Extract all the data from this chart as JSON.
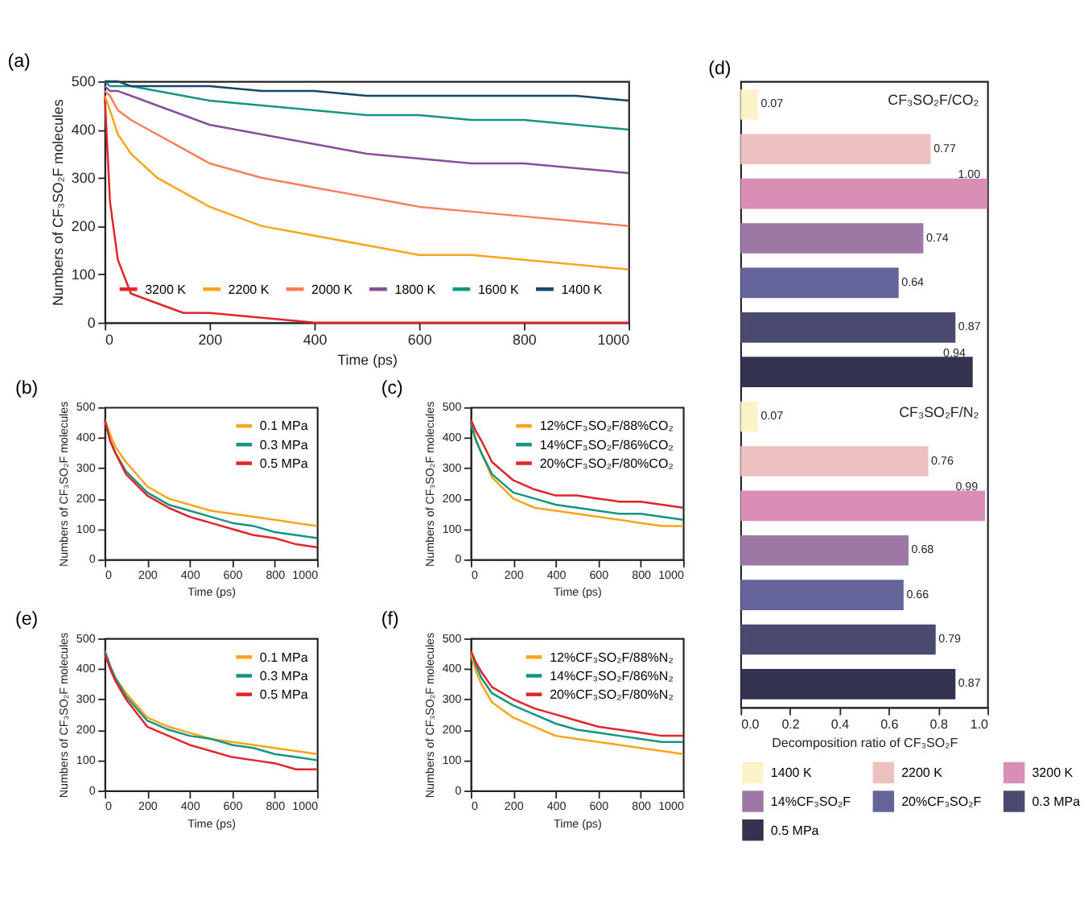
{
  "chart_data": [
    {
      "type": "line",
      "title": "(a)",
      "xlabel": "Time (ps)",
      "ylabel": "Numbers of CF₃SO₂F molecules",
      "xlim": [
        0,
        1000
      ],
      "xticks": [
        0,
        200,
        400,
        600,
        800,
        1000
      ],
      "ylim": [
        0,
        500
      ],
      "yticks": [
        0,
        100,
        200,
        300,
        400,
        500
      ],
      "grid": false,
      "legend": "bottom right",
      "marker": "none",
      "line_style": "solid",
      "x": [
        0,
        10,
        25,
        50,
        100,
        150,
        200,
        300,
        400,
        500,
        600,
        700,
        800,
        900,
        1000
      ],
      "series": [
        {
          "name": "3200 K",
          "color": "#e0262b",
          "values": [
            470,
            250,
            130,
            60,
            40,
            20,
            20,
            10,
            0,
            0,
            0,
            0,
            0,
            0,
            0
          ]
        },
        {
          "name": "2200 K",
          "color": "#f8a51b",
          "values": [
            470,
            440,
            390,
            350,
            300,
            270,
            240,
            200,
            180,
            160,
            140,
            140,
            130,
            120,
            110
          ]
        },
        {
          "name": "2000 K",
          "color": "#f7805a",
          "values": [
            480,
            470,
            440,
            420,
            390,
            360,
            330,
            300,
            280,
            260,
            240,
            230,
            220,
            210,
            200
          ]
        },
        {
          "name": "1800 K",
          "color": "#8a4d9e",
          "values": [
            490,
            480,
            480,
            470,
            450,
            430,
            410,
            390,
            370,
            350,
            340,
            330,
            330,
            320,
            310
          ]
        },
        {
          "name": "1600 K",
          "color": "#149580",
          "values": [
            500,
            490,
            490,
            490,
            480,
            470,
            460,
            450,
            440,
            430,
            430,
            420,
            420,
            410,
            400
          ]
        },
        {
          "name": "1400 K",
          "color": "#17466b",
          "values": [
            500,
            500,
            500,
            490,
            490,
            490,
            490,
            480,
            480,
            470,
            470,
            470,
            470,
            470,
            460
          ]
        }
      ]
    },
    {
      "type": "line",
      "title": "(b)",
      "xlabel": "Time (ps)",
      "ylabel": "Numbers of CF₃SO₂F molecules",
      "xlim": [
        0,
        1000
      ],
      "xticks": [
        0,
        200,
        400,
        600,
        800,
        1000
      ],
      "ylim": [
        0,
        500
      ],
      "yticks": [
        0,
        100,
        200,
        300,
        400,
        500
      ],
      "grid": false,
      "legend": "top right",
      "marker": "none",
      "line_style": "solid",
      "x": [
        0,
        25,
        50,
        100,
        200,
        300,
        400,
        500,
        600,
        700,
        800,
        900,
        1000
      ],
      "series": [
        {
          "name": "0.1 MPa",
          "color": "#f8a51b",
          "values": [
            460,
            410,
            370,
            320,
            240,
            200,
            180,
            160,
            150,
            140,
            130,
            120,
            110
          ]
        },
        {
          "name": "0.3 MPa",
          "color": "#149580",
          "values": [
            460,
            390,
            350,
            290,
            220,
            180,
            160,
            140,
            120,
            110,
            90,
            80,
            70
          ]
        },
        {
          "name": "0.5 MPa",
          "color": "#e0262b",
          "values": [
            460,
            390,
            350,
            280,
            210,
            170,
            140,
            120,
            100,
            80,
            70,
            50,
            40
          ]
        }
      ]
    },
    {
      "type": "line",
      "title": "(c)",
      "xlabel": "Time (ps)",
      "ylabel": "Numbers of CF₃SO₂F molecules",
      "xlim": [
        0,
        1000
      ],
      "xticks": [
        0,
        200,
        400,
        600,
        800,
        1000
      ],
      "ylim": [
        0,
        500
      ],
      "yticks": [
        0,
        100,
        200,
        300,
        400,
        500
      ],
      "grid": false,
      "legend": "top right",
      "marker": "none",
      "line_style": "solid",
      "x": [
        0,
        25,
        50,
        100,
        200,
        300,
        400,
        500,
        600,
        700,
        800,
        900,
        1000
      ],
      "series": [
        {
          "name": "12%CF₃SO₂F/88%CO₂",
          "color": "#f8a51b",
          "values": [
            450,
            390,
            350,
            270,
            200,
            170,
            160,
            150,
            140,
            130,
            120,
            110,
            110
          ]
        },
        {
          "name": "14%CF₃SO₂F/86%CO₂",
          "color": "#149580",
          "values": [
            450,
            390,
            350,
            280,
            220,
            200,
            180,
            170,
            160,
            150,
            150,
            140,
            130
          ]
        },
        {
          "name": "20%CF₃SO₂F/80%CO₂",
          "color": "#e0262b",
          "values": [
            460,
            420,
            390,
            320,
            260,
            230,
            210,
            210,
            200,
            190,
            190,
            180,
            170
          ]
        }
      ]
    },
    {
      "type": "line",
      "title": "(e)",
      "xlabel": "Time (ps)",
      "ylabel": "Numbers of CF₃SO₂F molecules",
      "xlim": [
        0,
        1000
      ],
      "xticks": [
        0,
        200,
        400,
        600,
        800,
        1000
      ],
      "ylim": [
        0,
        500
      ],
      "yticks": [
        0,
        100,
        200,
        300,
        400,
        500
      ],
      "grid": false,
      "legend": "top right",
      "marker": "none",
      "line_style": "solid",
      "x": [
        0,
        25,
        50,
        100,
        200,
        300,
        400,
        500,
        600,
        700,
        800,
        900,
        1000
      ],
      "series": [
        {
          "name": "0.1 MPa",
          "color": "#f8a51b",
          "values": [
            460,
            410,
            370,
            320,
            240,
            210,
            190,
            170,
            160,
            150,
            140,
            130,
            120
          ]
        },
        {
          "name": "0.3 MPa",
          "color": "#149580",
          "values": [
            460,
            410,
            370,
            310,
            230,
            200,
            180,
            170,
            150,
            140,
            120,
            110,
            100
          ]
        },
        {
          "name": "0.5 MPa",
          "color": "#e0262b",
          "values": [
            450,
            400,
            360,
            300,
            210,
            180,
            150,
            130,
            110,
            100,
            90,
            70,
            70
          ]
        }
      ]
    },
    {
      "type": "line",
      "title": "(f)",
      "xlabel": "Time (ps)",
      "ylabel": "Numbers of CF₃SO₂F molecules",
      "xlim": [
        0,
        1000
      ],
      "xticks": [
        0,
        200,
        400,
        600,
        800,
        1000
      ],
      "ylim": [
        0,
        500
      ],
      "yticks": [
        0,
        100,
        200,
        300,
        400,
        500
      ],
      "grid": false,
      "legend": "top right",
      "marker": "none",
      "line_style": "solid",
      "x": [
        0,
        25,
        50,
        100,
        200,
        300,
        400,
        500,
        600,
        700,
        800,
        900,
        1000
      ],
      "series": [
        {
          "name": "12%CF₃SO₂F/88%N₂",
          "color": "#f8a51b",
          "values": [
            450,
            390,
            350,
            290,
            240,
            210,
            180,
            170,
            160,
            150,
            140,
            130,
            120
          ]
        },
        {
          "name": "14%CF₃SO₂F/86%N₂",
          "color": "#149580",
          "values": [
            460,
            410,
            370,
            320,
            280,
            250,
            220,
            200,
            190,
            180,
            170,
            160,
            160
          ]
        },
        {
          "name": "20%CF₃SO₂F/80%N₂",
          "color": "#e0262b",
          "values": [
            460,
            420,
            390,
            340,
            300,
            270,
            250,
            230,
            210,
            200,
            190,
            180,
            180
          ]
        }
      ]
    },
    {
      "type": "bar",
      "orientation": "horizontal",
      "stacked": true,
      "title": "(d)",
      "xlabel": "Decomposition ratio of CF₃SO₂F",
      "annotations": [
        "CF₃SO₂F/CO₂",
        "CF₃SO₂F/N₂"
      ],
      "categories": [
        null,
        null,
        null,
        null,
        null,
        null,
        null,
        null,
        null,
        null,
        null,
        null,
        null,
        null
      ],
      "xlim": [
        0,
        1
      ],
      "xticks": [
        {
          "value": 0,
          "label": "0.0"
        },
        {
          "value": 0.2,
          "label": "0.2"
        },
        {
          "value": 0.4,
          "label": "0.4"
        },
        {
          "value": 0.6,
          "label": "0.6"
        },
        {
          "value": 0.8,
          "label": "0.8"
        },
        {
          "value": 1,
          "label": "1.0"
        }
      ],
      "grid": false,
      "legend": "bottom",
      "series": [
        {
          "name": "1400 K",
          "color": "#fcf2c8",
          "values": [
            0.07,
            null,
            null,
            null,
            null,
            null,
            null,
            0.07,
            null,
            null,
            null,
            null,
            null,
            null
          ],
          "value_labels": [
            "0.07",
            null,
            null,
            null,
            null,
            null,
            null,
            "0.07",
            null,
            null,
            null,
            null,
            null,
            null
          ]
        },
        {
          "name": "2200 K",
          "color": "#ecc1c0",
          "values": [
            null,
            0.77,
            null,
            null,
            null,
            null,
            null,
            null,
            0.76,
            null,
            null,
            null,
            null,
            null
          ],
          "value_labels": [
            null,
            "0.77",
            null,
            null,
            null,
            null,
            null,
            null,
            "0.76",
            null,
            null,
            null,
            null,
            null
          ]
        },
        {
          "name": "3200 K",
          "color": "#d98eb6",
          "values": [
            null,
            null,
            1.0,
            null,
            null,
            null,
            null,
            null,
            null,
            0.99,
            null,
            null,
            null,
            null
          ],
          "value_labels": [
            null,
            null,
            "1.00",
            null,
            null,
            null,
            null,
            null,
            null,
            "0.99",
            null,
            null,
            null,
            null
          ]
        },
        {
          "name": "14%CF₃SO₂F",
          "color": "#9e78a5",
          "values": [
            null,
            null,
            null,
            0.74,
            null,
            null,
            null,
            null,
            null,
            null,
            0.68,
            null,
            null,
            null
          ],
          "value_labels": [
            null,
            null,
            null,
            "0.74",
            null,
            null,
            null,
            null,
            null,
            null,
            "0.68",
            null,
            null,
            null
          ]
        },
        {
          "name": "20%CF₃SO₂F",
          "color": "#65649a",
          "values": [
            null,
            null,
            null,
            null,
            0.64,
            null,
            null,
            null,
            null,
            null,
            null,
            0.66,
            null,
            null
          ],
          "value_labels": [
            null,
            null,
            null,
            null,
            "0.64",
            null,
            null,
            null,
            null,
            null,
            null,
            "0.66",
            null,
            null
          ]
        },
        {
          "name": "0.3 MPa",
          "color": "#4a4a70",
          "values": [
            null,
            null,
            null,
            null,
            null,
            0.87,
            null,
            null,
            null,
            null,
            null,
            null,
            0.79,
            null
          ],
          "value_labels": [
            null,
            null,
            null,
            null,
            null,
            "0.87",
            null,
            null,
            null,
            null,
            null,
            null,
            "0.79",
            null
          ]
        },
        {
          "name": "0.5 MPa",
          "color": "#33334f",
          "values": [
            null,
            null,
            null,
            null,
            null,
            null,
            0.94,
            null,
            null,
            null,
            null,
            null,
            null,
            0.87
          ],
          "value_labels": [
            null,
            null,
            null,
            null,
            null,
            null,
            "0.94",
            null,
            null,
            null,
            null,
            null,
            null,
            "0.87"
          ]
        }
      ]
    }
  ]
}
